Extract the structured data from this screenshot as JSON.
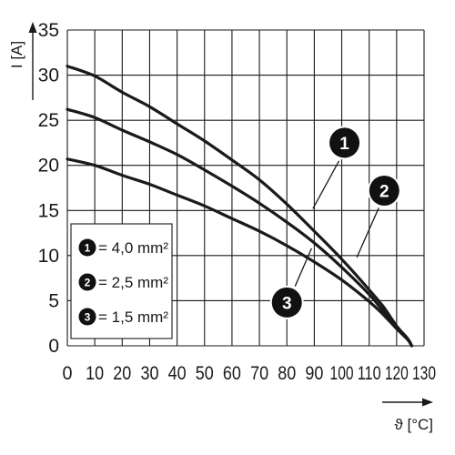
{
  "chart_data": {
    "type": "line",
    "xlabel": "ϑ [°C]",
    "ylabel": "I [A]",
    "xlim": [
      0,
      130
    ],
    "ylim": [
      0,
      35
    ],
    "x_ticks": [
      0,
      10,
      20,
      30,
      40,
      50,
      60,
      70,
      80,
      90,
      100,
      110,
      120,
      130
    ],
    "y_ticks": [
      0,
      5,
      10,
      15,
      20,
      25,
      30,
      35
    ],
    "grid": true,
    "legend_position": "bottom-left",
    "series": [
      {
        "name": "4,0 mm²",
        "badge": "1",
        "x": [
          0,
          10,
          20,
          30,
          40,
          50,
          60,
          70,
          80,
          90,
          100,
          110,
          115,
          120,
          124,
          125.5
        ],
        "y": [
          31,
          29.9,
          28.1,
          26.5,
          24.6,
          22.7,
          20.6,
          18.4,
          15.7,
          12.7,
          9.6,
          6.2,
          4.4,
          2.2,
          0.8,
          0
        ]
      },
      {
        "name": "2,5 mm²",
        "badge": "2",
        "x": [
          0,
          10,
          20,
          30,
          40,
          50,
          60,
          70,
          80,
          90,
          100,
          110,
          115,
          120,
          124,
          125.5
        ],
        "y": [
          26.2,
          25.3,
          23.9,
          22.6,
          21.2,
          19.5,
          17.7,
          15.8,
          13.7,
          11.4,
          8.7,
          5.7,
          3.9,
          2.1,
          0.8,
          0
        ]
      },
      {
        "name": "1,5 mm²",
        "badge": "3",
        "x": [
          0,
          10,
          20,
          30,
          40,
          50,
          60,
          70,
          80,
          90,
          100,
          110,
          115,
          120,
          124,
          125.5
        ],
        "y": [
          20.7,
          20,
          18.9,
          17.9,
          16.7,
          15.5,
          14.1,
          12.7,
          11.1,
          9.3,
          7.3,
          4.9,
          3.5,
          1.9,
          0.7,
          0
        ]
      }
    ],
    "callouts": [
      {
        "badge": "1",
        "to_series": 0,
        "label_at": [
          101,
          22.5
        ],
        "line_from": [
          89.5,
          15.2
        ],
        "line_to": [
          99,
          20.5
        ]
      },
      {
        "badge": "2",
        "to_series": 1,
        "label_at": [
          115.5,
          17.2
        ],
        "line_from": [
          105.5,
          9.8
        ],
        "line_to": [
          113.5,
          15.3
        ]
      },
      {
        "badge": "3",
        "to_series": 2,
        "label_at": [
          80,
          4.8
        ],
        "line_from": [
          89,
          10.8
        ],
        "line_to": [
          83,
          6.6
        ]
      }
    ],
    "colors": {
      "line": "#1a1a1a",
      "grid": "#1a1a1a",
      "badge": "#111111",
      "badge_text": "#ffffff"
    }
  }
}
